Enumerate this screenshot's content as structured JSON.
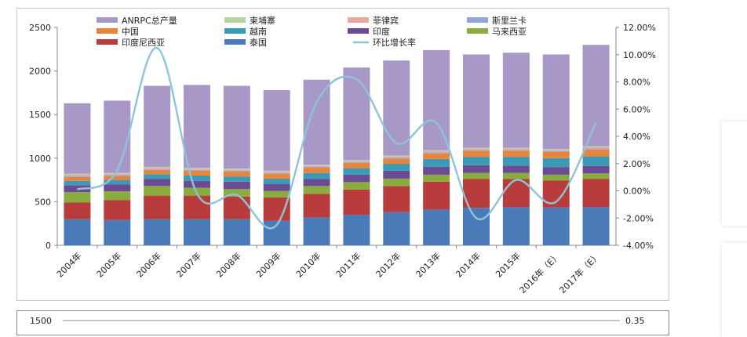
{
  "chart_data": {
    "type": "bar",
    "stacked": true,
    "categories": [
      "2004年",
      "2005年",
      "2006年",
      "2007年",
      "2008年",
      "2009年",
      "2010年",
      "2011年",
      "2012年",
      "2013年",
      "2014年",
      "2015年",
      "2016年（E）",
      "2017年（E）"
    ],
    "ylim": [
      0,
      2500
    ],
    "yticks": [
      "0",
      "500",
      "1000",
      "1500",
      "2000",
      "2500"
    ],
    "y2lim": [
      -4,
      12
    ],
    "y2ticks": [
      "-4.00%",
      "-2.00%",
      "0.00%",
      "2.00%",
      "4.00%",
      "6.00%",
      "8.00%",
      "10.00%",
      "12.00%"
    ],
    "grid": false,
    "legend_position": "top",
    "series": [
      {
        "name": "泰国",
        "color": "#4a7ab8",
        "values": [
          300,
          290,
          300,
          300,
          300,
          280,
          320,
          350,
          380,
          410,
          430,
          440,
          435,
          440
        ]
      },
      {
        "name": "印度尼西亚",
        "color": "#b83c3c",
        "values": [
          190,
          230,
          270,
          270,
          260,
          270,
          270,
          290,
          300,
          320,
          330,
          320,
          310,
          320
        ]
      },
      {
        "name": "马来西亚",
        "color": "#8aac3e",
        "values": [
          120,
          100,
          110,
          90,
          85,
          75,
          90,
          85,
          85,
          80,
          70,
          70,
          65,
          65
        ]
      },
      {
        "name": "印度",
        "color": "#6b4c94",
        "values": [
          80,
          80,
          80,
          80,
          85,
          80,
          80,
          85,
          90,
          90,
          90,
          85,
          85,
          85
        ]
      },
      {
        "name": "越南",
        "color": "#3b9ab5",
        "values": [
          50,
          50,
          55,
          60,
          60,
          60,
          70,
          75,
          80,
          90,
          95,
          100,
          105,
          110
        ]
      },
      {
        "name": "中国",
        "color": "#e8853a",
        "values": [
          45,
          45,
          50,
          55,
          55,
          55,
          60,
          60,
          60,
          65,
          70,
          70,
          70,
          80
        ]
      },
      {
        "name": "斯里兰卡",
        "color": "#8fa8d8",
        "values": [
          10,
          10,
          10,
          10,
          10,
          10,
          10,
          10,
          10,
          10,
          10,
          10,
          10,
          10
        ]
      },
      {
        "name": "菲律宾",
        "color": "#e8a8a0",
        "values": [
          15,
          15,
          15,
          15,
          15,
          15,
          15,
          15,
          15,
          15,
          15,
          15,
          15,
          15
        ]
      },
      {
        "name": "柬埔寨",
        "color": "#b8d4a0",
        "values": [
          10,
          10,
          10,
          10,
          10,
          10,
          10,
          10,
          10,
          10,
          10,
          10,
          10,
          10
        ]
      },
      {
        "name": "ANRPC总产量",
        "color": "#a898c8",
        "total": true,
        "values": [
          1630,
          1660,
          1830,
          1840,
          1830,
          1780,
          1900,
          2040,
          2120,
          2240,
          2190,
          2210,
          2190,
          2300
        ]
      }
    ],
    "line_series": {
      "name": "环比增长率",
      "color": "#8ec4d8",
      "axis": "right",
      "values": [
        0.1,
        1.5,
        10.5,
        -0.2,
        -0.3,
        -2.5,
        6.5,
        8.2,
        3.5,
        5.0,
        -2.0,
        0.8,
        -0.8,
        5.0
      ]
    }
  },
  "lower_chart": {
    "left_tick": "1500",
    "right_tick": "0.35"
  }
}
